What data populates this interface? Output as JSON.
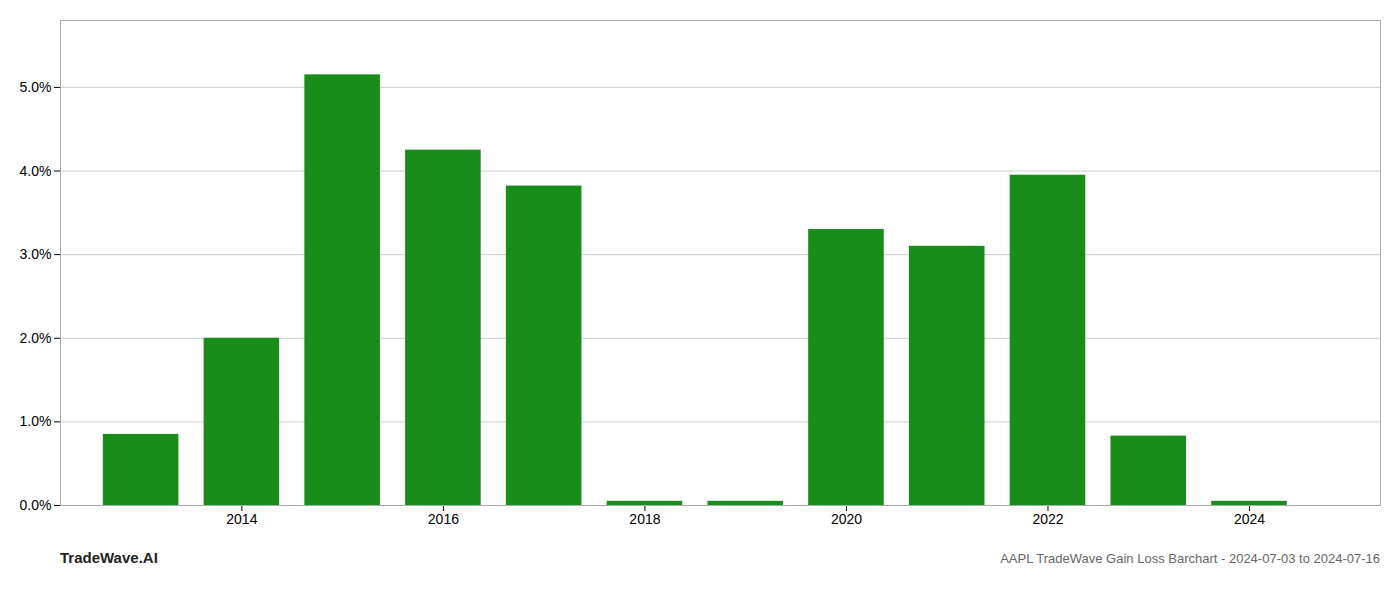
{
  "chart_data": {
    "type": "bar",
    "x": [
      2013,
      2014,
      2015,
      2016,
      2017,
      2018,
      2019,
      2020,
      2021,
      2022,
      2023,
      2024
    ],
    "values": [
      0.0085,
      0.02,
      0.0515,
      0.0425,
      0.0382,
      0.0005,
      0.0005,
      0.033,
      0.031,
      0.0395,
      0.0083,
      0.0005
    ],
    "color": "#1a8c1a",
    "xlim": [
      2012.2,
      2025.3
    ],
    "xticks": [
      2014,
      2016,
      2018,
      2020,
      2022,
      2024
    ],
    "ylim": [
      0,
      0.058
    ],
    "yticks": [
      {
        "value": 0.0,
        "label": "0.0%"
      },
      {
        "value": 0.01,
        "label": "1.0%"
      },
      {
        "value": 0.02,
        "label": "2.0%"
      },
      {
        "value": 0.03,
        "label": "3.0%"
      },
      {
        "value": 0.04,
        "label": "4.0%"
      },
      {
        "value": 0.05,
        "label": "5.0%"
      }
    ],
    "grid": true,
    "annotations": [
      "TradeWave.AI",
      "AAPL TradeWave Gain Loss Barchart - 2024-07-03 to 2024-07-16"
    ]
  }
}
